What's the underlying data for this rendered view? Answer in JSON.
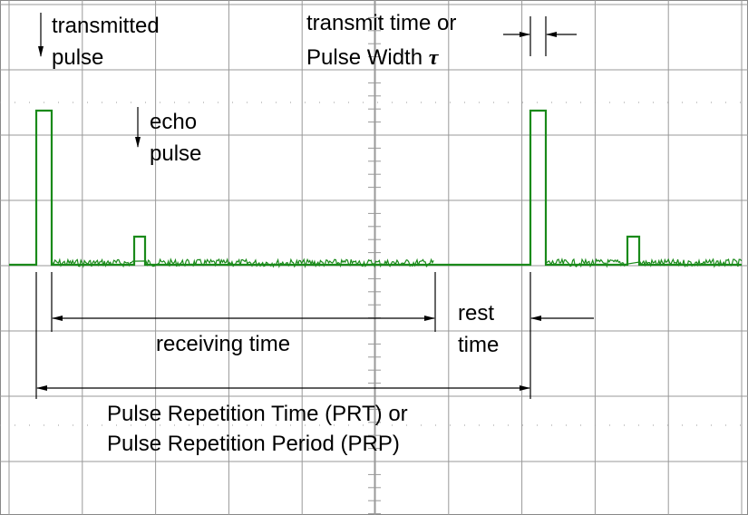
{
  "labels": {
    "transmitted_pulse": [
      "transmitted",
      "pulse"
    ],
    "echo_pulse": [
      "echo",
      "pulse"
    ],
    "transmit_time": [
      "transmit time or",
      "Pulse Width"
    ],
    "tau": "τ",
    "receiving_time": "receiving time",
    "rest_time": [
      "rest",
      "time"
    ],
    "prt": [
      "Pulse Repetition Time (PRT) or",
      "Pulse Repetition Period (PRP)"
    ]
  }
}
